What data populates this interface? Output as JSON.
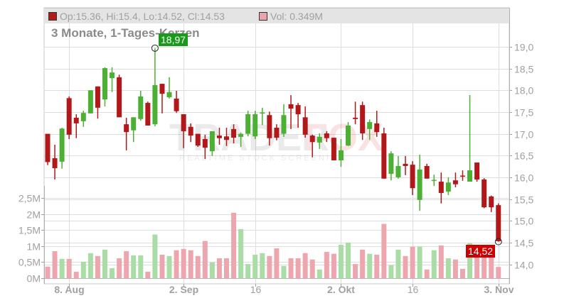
{
  "legend": {
    "ohlc_text": "Op:15.36, Hi:15.4, Lo:14.52, Cl:14.53",
    "ohlc_swatch_color": "#b01c1c",
    "volume_text": "Vol: 0.349M",
    "volume_swatch_color": "#eaa4ad"
  },
  "subtitle": "3 Monate, 1-Tages-Kerzen",
  "watermark": {
    "brand_a": "TRADER",
    "brand_b": "FOX",
    "tagline": "REALTIME STOCK SCREENING"
  },
  "tags": {
    "high_label": "18,97",
    "last_label": "14,52",
    "high_color": "#1a9a1a",
    "last_color": "#cc0000"
  },
  "colors": {
    "up": "#4bb033",
    "down": "#b2181a",
    "vol_up": "#aadca6",
    "vol_down": "#eea6ae",
    "grid": "#dddddd",
    "axis": "#a0a0a0"
  },
  "chart_data": {
    "type": "candlestick",
    "title": "3 Monate, 1-Tages-Kerzen",
    "price_axis": {
      "ticks": [
        "19,0",
        "18,5",
        "18,0",
        "17,5",
        "17,0",
        "16,5",
        "16,0",
        "15,5",
        "15,0",
        "14,5",
        "14,0"
      ],
      "range": [
        13.7,
        19.3
      ],
      "position": "right"
    },
    "volume_axis": {
      "ticks": [
        "2,5M",
        "2M",
        "1,5M",
        "1M",
        "0,5M",
        "0M"
      ],
      "range": [
        0,
        2.9
      ],
      "position": "left"
    },
    "x_labels": [
      {
        "label": "8. Aug",
        "index": 3,
        "bold": true
      },
      {
        "label": "2. Sep",
        "index": 19,
        "bold": true
      },
      {
        "label": "16",
        "index": 29,
        "bold": false
      },
      {
        "label": "2. Okt",
        "index": 41,
        "bold": true
      },
      {
        "label": "16",
        "index": 51,
        "bold": false
      },
      {
        "label": "3. Nov",
        "index": 63,
        "bold": true
      }
    ],
    "annotations": [
      {
        "text": "18,97",
        "type": "high"
      },
      {
        "text": "14,52",
        "type": "last_low"
      }
    ],
    "candles": [
      {
        "o": 17.0,
        "h": 17.0,
        "l": 16.28,
        "c": 16.35,
        "v": 0.36
      },
      {
        "o": 16.44,
        "h": 16.75,
        "l": 15.95,
        "c": 16.21,
        "v": 0.84
      },
      {
        "o": 16.36,
        "h": 17.14,
        "l": 16.2,
        "c": 17.12,
        "v": 0.6
      },
      {
        "o": 17.82,
        "h": 17.86,
        "l": 16.88,
        "c": 16.98,
        "v": 0.6
      },
      {
        "o": 17.37,
        "h": 17.45,
        "l": 16.9,
        "c": 17.24,
        "v": 0.2
      },
      {
        "o": 17.29,
        "h": 17.53,
        "l": 17.16,
        "c": 17.48,
        "v": 0.51
      },
      {
        "o": 17.47,
        "h": 18.0,
        "l": 17.47,
        "c": 18.0,
        "v": 0.78
      },
      {
        "o": 18.09,
        "h": 18.09,
        "l": 17.35,
        "c": 17.6,
        "v": 0.69
      },
      {
        "o": 17.79,
        "h": 18.53,
        "l": 17.63,
        "c": 18.51,
        "v": 0.89
      },
      {
        "o": 18.28,
        "h": 18.53,
        "l": 17.96,
        "c": 18.41,
        "v": 0.31
      },
      {
        "o": 18.3,
        "h": 18.36,
        "l": 17.38,
        "c": 17.38,
        "v": 0.62
      },
      {
        "o": 17.22,
        "h": 17.37,
        "l": 16.62,
        "c": 17.04,
        "v": 0.84
      },
      {
        "o": 17.08,
        "h": 17.38,
        "l": 16.81,
        "c": 17.38,
        "v": 0.71
      },
      {
        "o": 17.34,
        "h": 17.99,
        "l": 17.3,
        "c": 17.86,
        "v": 0.71
      },
      {
        "o": 17.71,
        "h": 17.74,
        "l": 17.19,
        "c": 17.19,
        "v": 0.2
      },
      {
        "o": 17.22,
        "h": 18.97,
        "l": 17.17,
        "c": 18.12,
        "v": 1.36
      },
      {
        "o": 18.15,
        "h": 18.15,
        "l": 17.47,
        "c": 17.92,
        "v": 0.73
      },
      {
        "o": 17.84,
        "h": 18.3,
        "l": 17.81,
        "c": 17.96,
        "v": 0.69
      },
      {
        "o": 17.81,
        "h": 17.99,
        "l": 17.48,
        "c": 17.52,
        "v": 0.87
      },
      {
        "o": 17.45,
        "h": 17.45,
        "l": 16.67,
        "c": 17.06,
        "v": 0.91
      },
      {
        "o": 17.16,
        "h": 17.24,
        "l": 16.81,
        "c": 16.96,
        "v": 0.87
      },
      {
        "o": 17.0,
        "h": 17.0,
        "l": 16.7,
        "c": 16.73,
        "v": 0.69
      },
      {
        "o": 16.88,
        "h": 16.98,
        "l": 16.42,
        "c": 16.68,
        "v": 1.16
      },
      {
        "o": 16.6,
        "h": 17.06,
        "l": 16.49,
        "c": 17.06,
        "v": 0.49
      },
      {
        "o": 16.96,
        "h": 17.14,
        "l": 16.75,
        "c": 16.9,
        "v": 0.62
      },
      {
        "o": 16.94,
        "h": 17.14,
        "l": 16.72,
        "c": 16.86,
        "v": 0.62
      },
      {
        "o": 17.11,
        "h": 17.22,
        "l": 16.78,
        "c": 16.91,
        "v": 2.04
      },
      {
        "o": 16.93,
        "h": 17.03,
        "l": 16.7,
        "c": 17.0,
        "v": 1.53
      },
      {
        "o": 17.0,
        "h": 17.53,
        "l": 16.94,
        "c": 17.45,
        "v": 0.44
      },
      {
        "o": 16.94,
        "h": 17.53,
        "l": 16.88,
        "c": 17.45,
        "v": 0.73
      },
      {
        "o": 17.47,
        "h": 17.6,
        "l": 17.2,
        "c": 17.49,
        "v": 0.78
      },
      {
        "o": 17.43,
        "h": 17.51,
        "l": 16.73,
        "c": 16.9,
        "v": 0.69
      },
      {
        "o": 17.14,
        "h": 17.22,
        "l": 16.85,
        "c": 16.91,
        "v": 0.93
      },
      {
        "o": 17.0,
        "h": 17.68,
        "l": 16.93,
        "c": 17.43,
        "v": 0.38
      },
      {
        "o": 17.68,
        "h": 17.89,
        "l": 17.11,
        "c": 17.58,
        "v": 0.62
      },
      {
        "o": 17.66,
        "h": 17.71,
        "l": 17.14,
        "c": 17.45,
        "v": 0.62
      },
      {
        "o": 17.38,
        "h": 17.63,
        "l": 16.91,
        "c": 16.98,
        "v": 0.78
      },
      {
        "o": 16.96,
        "h": 16.98,
        "l": 16.46,
        "c": 16.81,
        "v": 0.58
      },
      {
        "o": 16.8,
        "h": 17.01,
        "l": 16.65,
        "c": 16.93,
        "v": 0.27
      },
      {
        "o": 17.01,
        "h": 17.06,
        "l": 16.81,
        "c": 16.9,
        "v": 0.82
      },
      {
        "o": 16.91,
        "h": 16.91,
        "l": 16.39,
        "c": 16.39,
        "v": 0.76
      },
      {
        "o": 16.39,
        "h": 16.88,
        "l": 16.24,
        "c": 16.62,
        "v": 1.04
      },
      {
        "o": 16.73,
        "h": 17.27,
        "l": 16.72,
        "c": 17.19,
        "v": 1.11
      },
      {
        "o": 17.37,
        "h": 17.74,
        "l": 17.22,
        "c": 17.34,
        "v": 0.44
      },
      {
        "o": 17.66,
        "h": 17.74,
        "l": 16.86,
        "c": 17.01,
        "v": 0.89
      },
      {
        "o": 17.11,
        "h": 17.33,
        "l": 16.86,
        "c": 17.27,
        "v": 0.76
      },
      {
        "o": 17.24,
        "h": 17.53,
        "l": 16.93,
        "c": 17.04,
        "v": 0.73
      },
      {
        "o": 17.01,
        "h": 17.14,
        "l": 15.97,
        "c": 15.97,
        "v": 1.69
      },
      {
        "o": 16.08,
        "h": 16.6,
        "l": 15.93,
        "c": 16.55,
        "v": 0.4
      },
      {
        "o": 16.0,
        "h": 16.49,
        "l": 15.97,
        "c": 16.26,
        "v": 0.89
      },
      {
        "o": 16.31,
        "h": 16.49,
        "l": 16.05,
        "c": 16.26,
        "v": 0.69
      },
      {
        "o": 16.29,
        "h": 16.37,
        "l": 15.59,
        "c": 15.75,
        "v": 0.98
      },
      {
        "o": 15.48,
        "h": 16.52,
        "l": 15.23,
        "c": 16.18,
        "v": 0.98
      },
      {
        "o": 16.26,
        "h": 16.31,
        "l": 15.97,
        "c": 15.97,
        "v": 0.27
      },
      {
        "o": 15.92,
        "h": 16.06,
        "l": 15.8,
        "c": 15.94,
        "v": 0.87
      },
      {
        "o": 15.9,
        "h": 16.11,
        "l": 15.4,
        "c": 15.64,
        "v": 1.02
      },
      {
        "o": 15.67,
        "h": 16.0,
        "l": 15.59,
        "c": 15.88,
        "v": 0.62
      },
      {
        "o": 15.93,
        "h": 16.11,
        "l": 15.77,
        "c": 15.84,
        "v": 0.58
      },
      {
        "o": 16.04,
        "h": 16.16,
        "l": 15.92,
        "c": 16.02,
        "v": 0.29
      },
      {
        "o": 15.9,
        "h": 17.89,
        "l": 15.9,
        "c": 16.16,
        "v": 1.09
      },
      {
        "o": 16.34,
        "h": 16.34,
        "l": 15.9,
        "c": 15.95,
        "v": 0.91
      },
      {
        "o": 15.95,
        "h": 15.98,
        "l": 15.29,
        "c": 15.31,
        "v": 0.91
      },
      {
        "o": 15.56,
        "h": 15.58,
        "l": 15.2,
        "c": 15.31,
        "v": 1.04
      },
      {
        "o": 15.36,
        "h": 15.4,
        "l": 14.52,
        "c": 14.53,
        "v": 0.349
      }
    ]
  }
}
